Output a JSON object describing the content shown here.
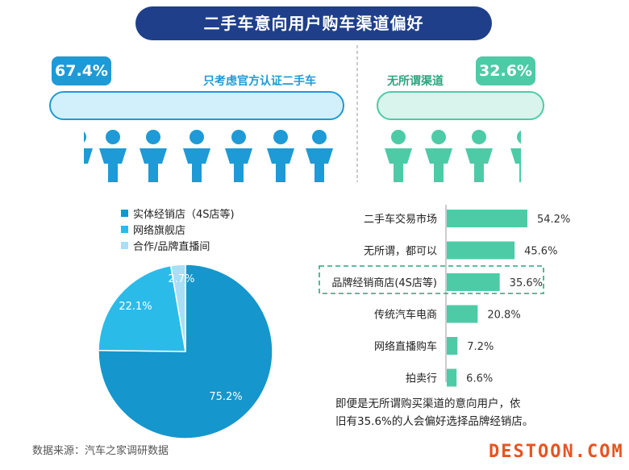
{
  "title": "二手车意向用户购车渠道偏好",
  "top": {
    "left": {
      "pct": "67.4%",
      "label": "只考虑官方认证二手车",
      "value": 67.4,
      "color": "#1e9ad6",
      "light": "#d2f0fb"
    },
    "right": {
      "pct": "32.6%",
      "label": "无所谓渠道",
      "value": 32.6,
      "color": "#4dcba6",
      "light": "#d9f4ec"
    }
  },
  "chart_data": [
    {
      "type": "pie",
      "legend": [
        "实体经销店（4S店等)",
        "网络旗舰店",
        "合作/品牌直播间"
      ],
      "labels": [
        "75.2%",
        "22.1%",
        "2.7%"
      ],
      "values": [
        75.2,
        22.1,
        2.7
      ],
      "colors": [
        "#1596cc",
        "#2bbbe9",
        "#a9def5"
      ]
    },
    {
      "type": "bar",
      "orientation": "horizontal",
      "categories": [
        "二手车交易市场",
        "无所谓，都可以",
        "品牌经销商店(4S店等)",
        "传统汽车电商",
        "网络直播购车",
        "拍卖行"
      ],
      "values": [
        54.2,
        45.6,
        35.6,
        20.8,
        7.2,
        6.6
      ],
      "labels": [
        "54.2%",
        "45.6%",
        "35.6%",
        "20.8%",
        "7.2%",
        "6.6%"
      ],
      "highlight_index": 2,
      "color": "#4dcba6"
    }
  ],
  "note_line1": "即便是无所谓购买渠道的意向用户，依",
  "note_line2": "旧有35.6%的人会偏好选择品牌经销店。",
  "footer": "数据来源：汽车之家调研数据",
  "watermark": "DESTOON.COM"
}
